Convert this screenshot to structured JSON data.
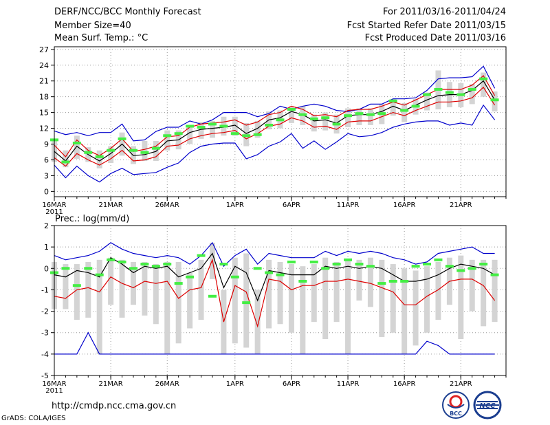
{
  "header": {
    "title": "DERF/NCC/BCC Monthly Forecast",
    "member_size": "Member Size=40",
    "variable": "Mean Surf. Temp.: °C",
    "period": "For 2011/03/16-2011/04/24",
    "fcst_started": "Fcst Started Refer Date 2011/03/15",
    "fcst_produced": "Fcst Produced Date 2011/03/16"
  },
  "footer": {
    "url": "http://cmdp.ncc.cma.gov.cn",
    "credit": "GrADS: COLA/IGES",
    "logo_bcc": "BCC",
    "logo_ncc": "NCC"
  },
  "colors": {
    "envelope": "#0000cc",
    "spread": "#dd0000",
    "mean": "#000000",
    "observed": "#44ee44",
    "box": "#d4d4d4",
    "grid": "#999999"
  },
  "chart_data": [
    {
      "type": "line",
      "title": "Mean Surf. Temp.: °C",
      "x_tick_labels": [
        "16MAR",
        "21MAR",
        "26MAR",
        "1APR",
        "6APR",
        "11APR",
        "16APR",
        "21APR"
      ],
      "x_year_label": "2011",
      "x_tick_days": [
        1,
        6,
        11,
        17,
        22,
        27,
        32,
        37
      ],
      "xlim": [
        1,
        41
      ],
      "days": [
        1,
        2,
        3,
        4,
        5,
        6,
        7,
        8,
        9,
        10,
        11,
        12,
        13,
        14,
        15,
        16,
        17,
        18,
        19,
        20,
        21,
        22,
        23,
        24,
        25,
        26,
        27,
        28,
        29,
        30,
        31,
        32,
        33,
        34,
        35,
        36,
        37,
        38,
        39,
        40
      ],
      "ylim": [
        -1,
        27.5
      ],
      "yticks": [
        0,
        3,
        6,
        9,
        12,
        15,
        18,
        21,
        24,
        27
      ],
      "series": [
        {
          "name": "upper envelope",
          "values": [
            11.5,
            10.8,
            11.2,
            10.6,
            11.2,
            11.2,
            12.8,
            9.6,
            9.8,
            11.4,
            12.2,
            12.2,
            13.4,
            12.8,
            13.6,
            15.0,
            15.0,
            15.0,
            14.2,
            14.8,
            16.2,
            15.6,
            16.2,
            16.6,
            16.2,
            15.4,
            15.2,
            15.6,
            16.6,
            16.6,
            17.6,
            17.6,
            17.8,
            19.2,
            21.4,
            21.6,
            21.6,
            21.8,
            23.8,
            19.6
          ]
        },
        {
          "name": "upper spread",
          "values": [
            8.8,
            6.6,
            9.8,
            7.8,
            6.8,
            8.2,
            10.0,
            7.6,
            8.0,
            8.6,
            10.4,
            10.6,
            12.2,
            12.8,
            13.0,
            13.2,
            13.6,
            12.6,
            13.2,
            14.6,
            15.0,
            16.2,
            15.6,
            14.4,
            14.6,
            14.2,
            15.4,
            15.6,
            15.6,
            16.2,
            17.0,
            16.4,
            17.4,
            18.4,
            19.4,
            19.4,
            19.4,
            20.2,
            22.0,
            18.2
          ]
        },
        {
          "name": "ensemble mean",
          "values": [
            7.6,
            5.8,
            8.6,
            7.0,
            5.8,
            7.2,
            9.0,
            6.8,
            7.0,
            7.6,
            9.6,
            9.8,
            11.2,
            11.8,
            12.0,
            12.2,
            12.6,
            11.0,
            12.0,
            13.6,
            14.0,
            15.2,
            14.6,
            13.4,
            13.6,
            13.0,
            14.4,
            14.6,
            14.6,
            15.2,
            16.2,
            15.4,
            16.4,
            17.4,
            18.2,
            18.4,
            18.4,
            19.2,
            21.0,
            17.4
          ]
        },
        {
          "name": "lower spread",
          "values": [
            6.4,
            4.8,
            7.2,
            6.0,
            5.0,
            6.2,
            7.8,
            5.8,
            6.0,
            6.6,
            8.6,
            8.8,
            10.0,
            10.6,
            11.0,
            11.2,
            11.6,
            10.0,
            11.0,
            12.4,
            12.8,
            14.0,
            13.4,
            12.2,
            12.4,
            11.8,
            13.2,
            13.4,
            13.4,
            14.2,
            15.0,
            14.4,
            15.4,
            16.2,
            17.0,
            17.0,
            17.2,
            17.8,
            19.8,
            16.4
          ]
        },
        {
          "name": "lower envelope",
          "values": [
            5.0,
            2.6,
            4.8,
            3.0,
            1.8,
            3.4,
            4.4,
            3.2,
            3.4,
            3.6,
            4.6,
            5.4,
            7.4,
            8.6,
            9.0,
            9.2,
            9.2,
            6.2,
            7.0,
            8.6,
            9.4,
            11.0,
            8.2,
            9.6,
            8.0,
            9.4,
            11.0,
            10.4,
            10.6,
            11.2,
            12.2,
            12.8,
            13.2,
            13.4,
            13.4,
            12.6,
            13.0,
            12.6,
            16.4,
            13.6
          ]
        }
      ],
      "boxes": {
        "q75": [
          9.6,
          7.8,
          10.6,
          8.4,
          7.8,
          8.6,
          11.2,
          8.6,
          9.6,
          9.6,
          11.6,
          11.6,
          12.6,
          13.2,
          13.4,
          14.2,
          14.2,
          13.0,
          13.4,
          15.2,
          15.4,
          16.2,
          16.2,
          14.6,
          15.0,
          14.6,
          15.8,
          15.8,
          15.8,
          16.6,
          17.6,
          16.8,
          17.6,
          18.8,
          23.0,
          20.8,
          20.6,
          20.4,
          22.6,
          19.0
        ],
        "q25": [
          5.6,
          4.6,
          6.2,
          5.6,
          4.4,
          5.4,
          6.8,
          5.2,
          5.8,
          5.8,
          7.8,
          8.0,
          9.0,
          10.0,
          10.2,
          10.6,
          10.6,
          8.6,
          10.2,
          11.8,
          12.0,
          13.0,
          12.6,
          11.4,
          11.6,
          11.0,
          12.2,
          12.6,
          12.6,
          12.8,
          14.4,
          13.2,
          14.6,
          15.4,
          15.6,
          16.0,
          16.0,
          16.6,
          18.0,
          15.2
        ]
      },
      "observed": [
        9.8,
        5.6,
        9.2,
        7.4,
        6.6,
        7.8,
        10.0,
        7.8,
        7.4,
        8.2,
        10.6,
        11.0,
        12.4,
        12.2,
        12.8,
        12.4,
        11.0,
        10.6,
        10.8,
        12.6,
        13.6,
        15.6,
        14.6,
        13.8,
        14.0,
        12.8,
        14.4,
        14.8,
        14.6,
        14.8,
        17.2,
        15.4,
        16.2,
        18.4,
        19.4,
        18.8,
        18.4,
        19.4,
        21.4,
        17.4
      ]
    },
    {
      "type": "line",
      "title": "Prec.: log(mm/d)",
      "x_tick_labels": [
        "16MAR",
        "21MAR",
        "26MAR",
        "1APR",
        "6APR",
        "11APR",
        "16APR",
        "21APR"
      ],
      "x_year_label": "2011",
      "x_tick_days": [
        1,
        6,
        11,
        17,
        22,
        27,
        32,
        37
      ],
      "xlim": [
        1,
        41
      ],
      "days": [
        1,
        2,
        3,
        4,
        5,
        6,
        7,
        8,
        9,
        10,
        11,
        12,
        13,
        14,
        15,
        16,
        17,
        18,
        19,
        20,
        21,
        22,
        23,
        24,
        25,
        26,
        27,
        28,
        29,
        30,
        31,
        32,
        33,
        34,
        35,
        36,
        37,
        38,
        39,
        40
      ],
      "ylim": [
        -5,
        2
      ],
      "yticks": [
        -5,
        -4,
        -3,
        -2,
        -1,
        0,
        1,
        2
      ],
      "series": [
        {
          "name": "upper envelope",
          "values": [
            0.6,
            0.4,
            0.5,
            0.6,
            0.8,
            1.2,
            0.9,
            0.7,
            0.6,
            0.5,
            0.6,
            0.5,
            0.2,
            0.6,
            1.2,
            0.1,
            0.6,
            0.9,
            0.2,
            0.7,
            0.6,
            0.5,
            0.5,
            0.5,
            0.8,
            0.6,
            0.8,
            0.7,
            0.8,
            0.7,
            0.5,
            0.4,
            0.2,
            0.3,
            0.7,
            0.8,
            0.9,
            1.0,
            0.7,
            0.7
          ]
        },
        {
          "name": "ensemble mean",
          "values": [
            -0.3,
            -0.4,
            -0.1,
            -0.2,
            -0.4,
            0.5,
            0.2,
            -0.2,
            0.1,
            0.0,
            0.1,
            -0.4,
            -0.2,
            0.0,
            0.7,
            -0.9,
            0.1,
            -0.2,
            -1.5,
            -0.1,
            -0.2,
            -0.3,
            -0.3,
            -0.3,
            0.1,
            0.0,
            0.1,
            0.0,
            0.1,
            0.0,
            -0.3,
            -0.6,
            -0.6,
            -0.5,
            -0.3,
            0.0,
            0.2,
            0.1,
            0.0,
            -0.3
          ]
        },
        {
          "name": "lower spread",
          "values": [
            -1.3,
            -1.4,
            -1.0,
            -0.9,
            -1.1,
            -0.4,
            -0.7,
            -0.9,
            -0.6,
            -0.7,
            -0.6,
            -1.4,
            -1.0,
            -0.9,
            0.4,
            -2.5,
            -0.8,
            -1.1,
            -2.7,
            -0.5,
            -0.6,
            -1.0,
            -0.8,
            -0.8,
            -0.6,
            -0.6,
            -0.5,
            -0.6,
            -0.7,
            -0.9,
            -1.1,
            -1.7,
            -1.7,
            -1.3,
            -1.0,
            -0.6,
            -0.5,
            -0.5,
            -0.8,
            -1.5
          ]
        },
        {
          "name": "lower envelope",
          "values": [
            -4.0,
            -4.0,
            -4.0,
            -3.0,
            -4.0,
            -4.0,
            -4.0,
            -4.0,
            -4.0,
            -4.0,
            -4.0,
            -4.0,
            -4.0,
            -4.0,
            -4.0,
            -4.0,
            -4.0,
            -4.0,
            -4.0,
            -4.0,
            -4.0,
            -4.0,
            -4.0,
            -4.0,
            -4.0,
            -4.0,
            -4.0,
            -4.0,
            -4.0,
            -4.0,
            -4.0,
            -4.0,
            -4.0,
            -3.4,
            -3.6,
            -4.0,
            -4.0,
            -4.0,
            -4.0,
            -4.0
          ]
        }
      ],
      "boxes": {
        "q75": [
          0.3,
          0.2,
          0.2,
          0.3,
          0.4,
          0.5,
          0.4,
          0.3,
          0.3,
          0.2,
          0.3,
          0.3,
          -0.2,
          0.4,
          1.2,
          -1.0,
          0.5,
          0.7,
          -1.0,
          0.4,
          0.3,
          0.2,
          0.1,
          0.2,
          0.5,
          0.3,
          0.4,
          0.4,
          0.5,
          0.4,
          0.2,
          0.0,
          -0.1,
          0.1,
          0.3,
          0.5,
          0.6,
          0.4,
          0.4,
          0.4
        ],
        "q25": [
          -1.9,
          -1.9,
          -2.4,
          -2.3,
          -4.0,
          -1.7,
          -2.3,
          -1.7,
          -2.2,
          -2.6,
          -4.0,
          -3.5,
          -2.8,
          -2.4,
          -0.5,
          -4.0,
          -3.5,
          -3.7,
          -4.0,
          -2.8,
          -2.6,
          -3.0,
          -4.0,
          -2.5,
          -3.3,
          -2.5,
          -4.0,
          -1.5,
          -1.8,
          -3.2,
          -3.0,
          -4.0,
          -3.6,
          -3.0,
          -2.4,
          -1.7,
          -3.3,
          -2.0,
          -2.7,
          -2.5
        ]
      },
      "observed": [
        -0.2,
        0.0,
        -0.8,
        0.0,
        -0.3,
        0.4,
        0.3,
        0.0,
        0.2,
        0.1,
        0.2,
        -0.7,
        -0.4,
        0.6,
        -1.3,
        0.2,
        -0.4,
        -1.6,
        0.0,
        -0.2,
        -0.3,
        0.3,
        -0.6,
        0.3,
        0.0,
        0.2,
        0.4,
        0.2,
        0.1,
        -0.7,
        -0.6,
        -0.6,
        0.1,
        0.2,
        0.4,
        0.1,
        -0.1,
        0.0,
        0.2,
        -0.3
      ]
    }
  ]
}
